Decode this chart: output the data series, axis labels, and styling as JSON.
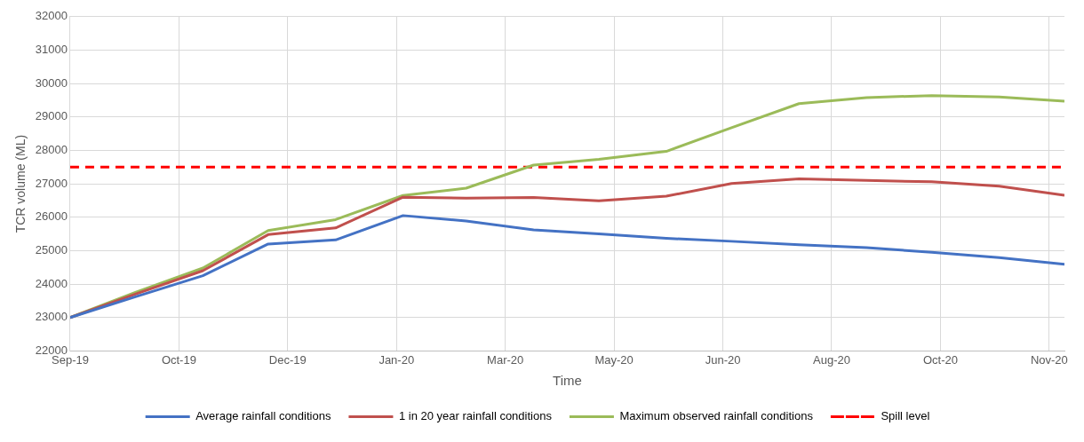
{
  "chart_data": {
    "type": "line",
    "xlabel": "Time",
    "ylabel": "TCR volume (ML)",
    "x": [
      "2019-09",
      "2019-10",
      "2019-11",
      "2019-12",
      "2020-01",
      "2020-02",
      "2020-03",
      "2020-04",
      "2020-05",
      "2020-06",
      "2020-07",
      "2020-08",
      "2020-09",
      "2020-10",
      "2020-11",
      "2020-12"
    ],
    "series": [
      {
        "name": "Average rainfall conditions",
        "color": "#4472c4",
        "values": [
          23000,
          23620,
          24250,
          25200,
          25320,
          26050,
          25890,
          25620,
          25500,
          25370,
          25280,
          25180,
          25090,
          24950,
          24790,
          24590
        ]
      },
      {
        "name": "1 in 20 year rainfall conditions",
        "color": "#c0504d",
        "values": [
          23000,
          23700,
          24400,
          25480,
          25680,
          26600,
          26570,
          26590,
          26490,
          26630,
          27010,
          27150,
          27100,
          27060,
          26930,
          26660
        ]
      },
      {
        "name": "Maximum observed rainfall conditions",
        "color": "#9bbb59",
        "values": [
          23000,
          23750,
          24480,
          25600,
          25930,
          26650,
          26870,
          27560,
          27730,
          27970,
          28680,
          29400,
          29580,
          29640,
          29600,
          29470
        ]
      }
    ],
    "ref_lines": [
      {
        "axis": "y",
        "value": 27500,
        "label": "Spill level",
        "color": "#ff0000",
        "line_style": "dashed"
      }
    ],
    "xlim": [
      "2019-09",
      "2020-12"
    ],
    "xticks": [
      {
        "value": "2019-09-01",
        "label": "Sep-19"
      },
      {
        "value": "2019-10-21",
        "label": "Oct-19"
      },
      {
        "value": "2019-12-10",
        "label": "Dec-19"
      },
      {
        "value": "2020-01-29",
        "label": "Jan-20"
      },
      {
        "value": "2020-03-19",
        "label": "Mar-20"
      },
      {
        "value": "2020-05-08",
        "label": "May-20"
      },
      {
        "value": "2020-06-27",
        "label": "Jun-20"
      },
      {
        "value": "2020-08-16",
        "label": "Aug-20"
      },
      {
        "value": "2020-10-05",
        "label": "Oct-20"
      },
      {
        "value": "2020-11-24",
        "label": "Nov-20"
      }
    ],
    "ylim": [
      22000,
      32000
    ],
    "yticks": [
      22000,
      23000,
      24000,
      25000,
      26000,
      27000,
      28000,
      29000,
      30000,
      31000,
      32000
    ],
    "grid": true,
    "legend": "bottom",
    "marker": "none",
    "line_style": "solid"
  }
}
